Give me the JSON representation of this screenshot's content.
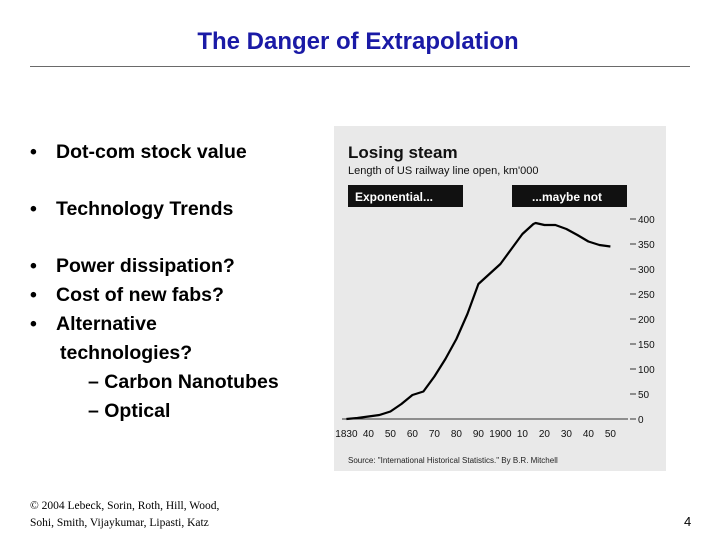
{
  "slide": {
    "title": "The Danger of Extrapolation",
    "bullets": [
      {
        "text": "Dot-com stock value"
      },
      {
        "text": "Technology Trends"
      },
      {
        "text": "Power dissipation?"
      },
      {
        "text": "Cost of new fabs?"
      },
      {
        "text": "Alternative"
      },
      {
        "text": "technologies?"
      }
    ],
    "bullet_glyph": "•",
    "sub_bullets": [
      "– Carbon Nanotubes",
      "– Optical"
    ],
    "footer_line1": "© 2004 Lebeck, Sorin, Roth, Hill, Wood,",
    "footer_line2": "Sohi, Smith, Vijaykumar, Lipasti, Katz",
    "page_number": "4"
  },
  "colors": {
    "title": "#1a1aa6",
    "chart_background": "#e9e9e9",
    "chart_line": "#000000",
    "label_box": "#111111"
  },
  "chart_data": {
    "type": "line",
    "title": "Losing steam",
    "subtitle": "Length of US railway line open, km'000",
    "annotations": [
      "Exponential...",
      "...maybe not"
    ],
    "source": "Source: \"International Historical Statistics.\" By B.R. Mitchell",
    "x_tick_labels": [
      "1830",
      "40",
      "50",
      "60",
      "70",
      "80",
      "90",
      "1900",
      "10",
      "20",
      "30",
      "40",
      "50"
    ],
    "x_tick_values": [
      1830,
      1840,
      1850,
      1860,
      1870,
      1880,
      1890,
      1900,
      1910,
      1920,
      1930,
      1940,
      1950
    ],
    "y_tick_labels": [
      "400",
      "350",
      "300",
      "250",
      "200",
      "150",
      "100",
      "50",
      "0"
    ],
    "y_tick_values": [
      400,
      350,
      300,
      250,
      200,
      150,
      100,
      50,
      0
    ],
    "xlim": [
      1828,
      1958
    ],
    "ylim": [
      0,
      420
    ],
    "y_axis_side": "right",
    "grid": false,
    "series": [
      {
        "x": [
          1830,
          1835,
          1840,
          1845,
          1850,
          1855,
          1860,
          1865,
          1870,
          1875,
          1880,
          1885,
          1890,
          1895,
          1900,
          1905,
          1910,
          1915,
          1916,
          1920,
          1925,
          1930,
          1935,
          1940,
          1945,
          1950
        ],
        "y": [
          0,
          2,
          5,
          8,
          15,
          30,
          48,
          55,
          85,
          120,
          160,
          210,
          270,
          290,
          310,
          340,
          370,
          390,
          392,
          388,
          388,
          380,
          368,
          355,
          348,
          345
        ]
      }
    ]
  }
}
